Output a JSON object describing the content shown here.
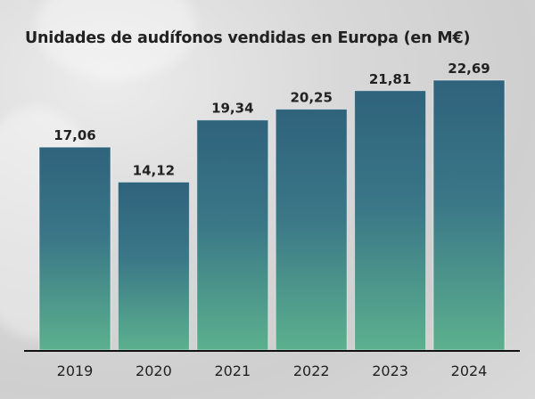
{
  "chart_data": {
    "type": "bar",
    "title": "Unidades de audífonos vendidas en Europa (en M€)",
    "xlabel": "",
    "ylabel": "",
    "categories": [
      "2019",
      "2020",
      "2021",
      "2022",
      "2023",
      "2024"
    ],
    "values": [
      17.06,
      14.12,
      19.34,
      20.25,
      21.81,
      22.69
    ],
    "value_labels": [
      "17,06",
      "14,12",
      "19,34",
      "20,25",
      "21,81",
      "22,69"
    ],
    "ylim": [
      0,
      22.69
    ],
    "grid": false,
    "legend": "none",
    "colors": {
      "bar_top": "#2f637c",
      "bar_bottom": "#5cb08e",
      "axis": "#111111",
      "text": "#222222"
    }
  }
}
